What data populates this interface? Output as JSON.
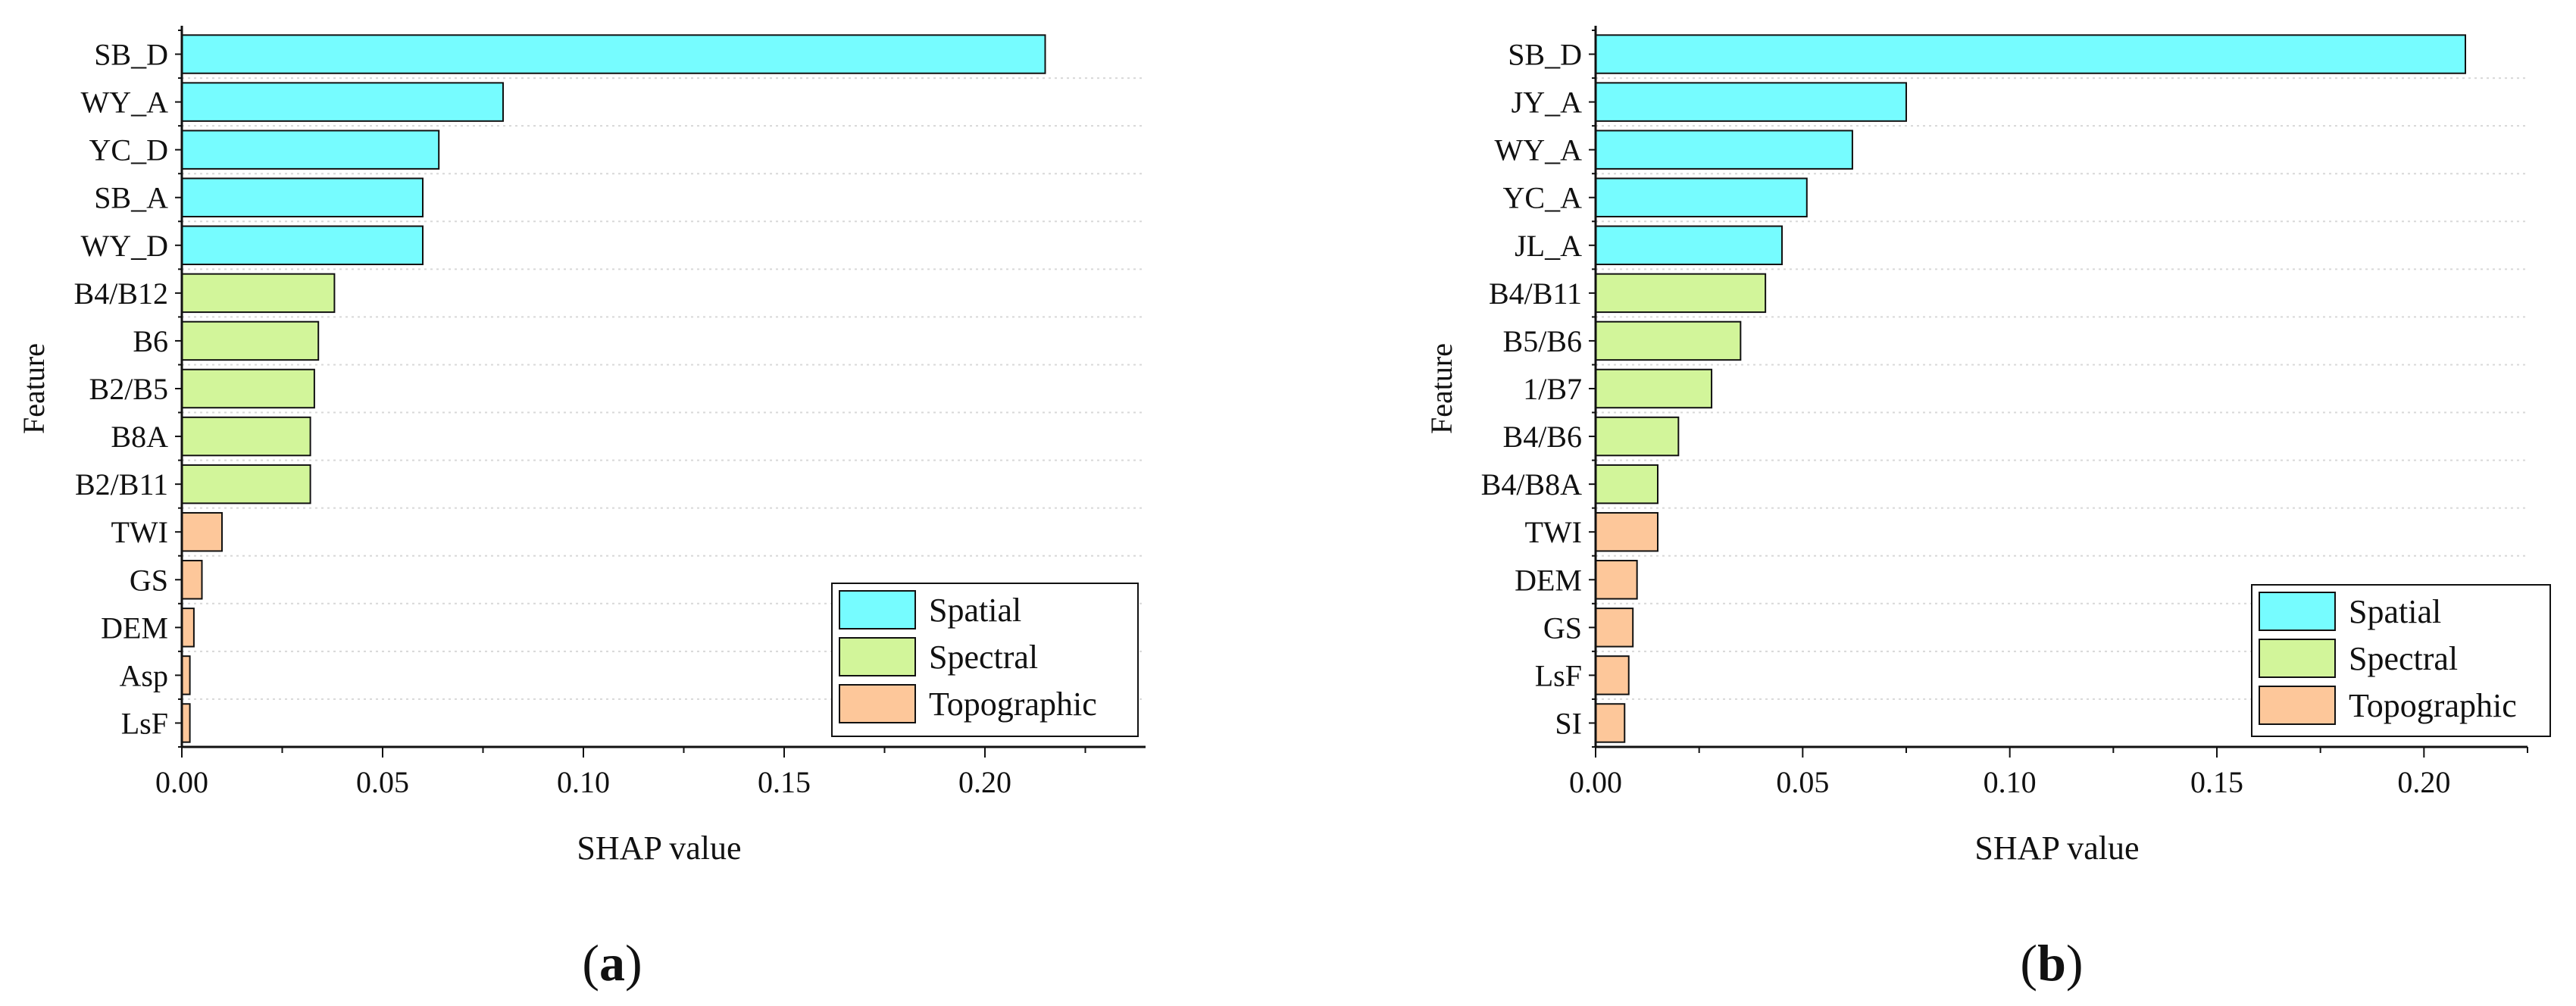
{
  "colors": {
    "Spatial": "#76FCFF",
    "Spectral": "#D2F59A",
    "Topographic": "#FDC79A",
    "stroke": "#111111",
    "grid": "#d8d8d8"
  },
  "chart_data": [
    {
      "type": "bar",
      "orientation": "horizontal",
      "panel_label": "a",
      "xlabel": "SHAP value",
      "ylabel": "Feature",
      "xlim": [
        0,
        0.24
      ],
      "xticks": [
        "0.00",
        "0.05",
        "0.10",
        "0.15",
        "0.20"
      ],
      "xtick_values": [
        0,
        0.05,
        0.1,
        0.15,
        0.2
      ],
      "grid": "horizontal dotted",
      "legend": {
        "position": "bottom-right",
        "entries": [
          "Spatial",
          "Spectral",
          "Topographic"
        ]
      },
      "categories": [
        "SB_D",
        "WY_A",
        "YC_D",
        "SB_A",
        "WY_D",
        "B4/B12",
        "B6",
        "B2/B5",
        "B8A",
        "B2/B11",
        "TWI",
        "GS",
        "DEM",
        "Asp",
        "LsF"
      ],
      "values": [
        0.215,
        0.08,
        0.064,
        0.06,
        0.06,
        0.038,
        0.034,
        0.033,
        0.032,
        0.032,
        0.01,
        0.005,
        0.003,
        0.002,
        0.002
      ],
      "groups": [
        "Spatial",
        "Spatial",
        "Spatial",
        "Spatial",
        "Spatial",
        "Spectral",
        "Spectral",
        "Spectral",
        "Spectral",
        "Spectral",
        "Topographic",
        "Topographic",
        "Topographic",
        "Topographic",
        "Topographic"
      ]
    },
    {
      "type": "bar",
      "orientation": "horizontal",
      "panel_label": "b",
      "xlabel": "SHAP value",
      "ylabel": "Feature",
      "xlim": [
        0,
        0.225
      ],
      "xticks": [
        "0.00",
        "0.05",
        "0.10",
        "0.15",
        "0.20"
      ],
      "xtick_values": [
        0,
        0.05,
        0.1,
        0.15,
        0.2
      ],
      "grid": "horizontal dotted",
      "legend": {
        "position": "bottom-right",
        "entries": [
          "Spatial",
          "Spectral",
          "Topographic"
        ]
      },
      "categories": [
        "SB_D",
        "JY_A",
        "WY_A",
        "YC_A",
        "JL_A",
        "B4/B11",
        "B5/B6",
        "1/B7",
        "B4/B6",
        "B4/B8A",
        "TWI",
        "DEM",
        "GS",
        "LsF",
        "SI"
      ],
      "values": [
        0.21,
        0.075,
        0.062,
        0.051,
        0.045,
        0.041,
        0.035,
        0.028,
        0.02,
        0.015,
        0.015,
        0.01,
        0.009,
        0.008,
        0.007
      ],
      "groups": [
        "Spatial",
        "Spatial",
        "Spatial",
        "Spatial",
        "Spatial",
        "Spectral",
        "Spectral",
        "Spectral",
        "Spectral",
        "Spectral",
        "Topographic",
        "Topographic",
        "Topographic",
        "Topographic",
        "Topographic"
      ]
    }
  ]
}
